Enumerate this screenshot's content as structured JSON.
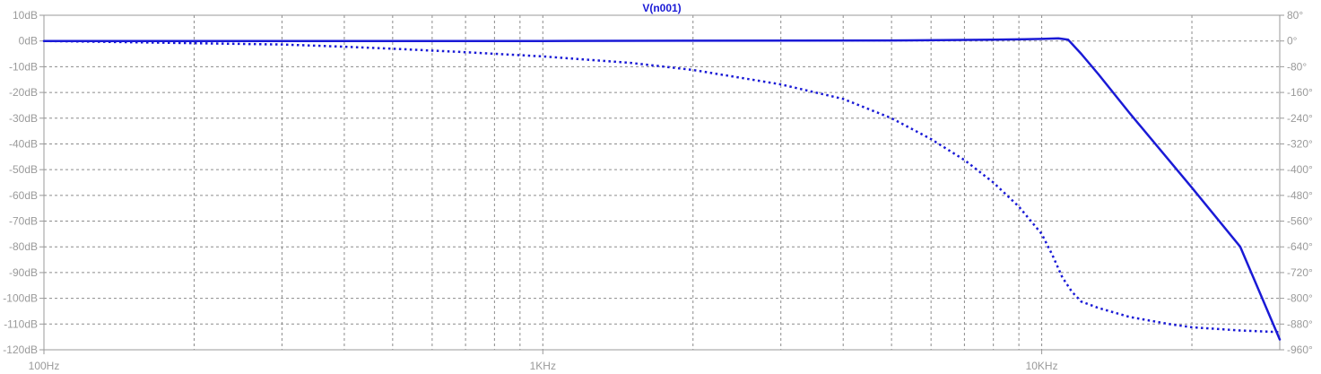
{
  "chart_data": {
    "type": "line",
    "title": "V(n001)",
    "xscale": "log",
    "xlim": [
      100,
      30000
    ],
    "x_ticks": [
      {
        "value": 100,
        "label": "100Hz"
      },
      {
        "value": 1000,
        "label": "1KHz"
      },
      {
        "value": 10000,
        "label": "10KHz"
      }
    ],
    "y_left": {
      "lim": [
        -120,
        10
      ],
      "ticks": [
        {
          "value": 10,
          "label": "10dB"
        },
        {
          "value": 0,
          "label": "0dB"
        },
        {
          "value": -10,
          "label": "-10dB"
        },
        {
          "value": -20,
          "label": "-20dB"
        },
        {
          "value": -30,
          "label": "-30dB"
        },
        {
          "value": -40,
          "label": "-40dB"
        },
        {
          "value": -50,
          "label": "-50dB"
        },
        {
          "value": -60,
          "label": "-60dB"
        },
        {
          "value": -70,
          "label": "-70dB"
        },
        {
          "value": -80,
          "label": "-80dB"
        },
        {
          "value": -90,
          "label": "-90dB"
        },
        {
          "value": -100,
          "label": "-100dB"
        },
        {
          "value": -110,
          "label": "-110dB"
        },
        {
          "value": -120,
          "label": "-120dB"
        }
      ]
    },
    "y_right": {
      "lim": [
        -960,
        80
      ],
      "ticks": [
        {
          "value": 80,
          "label": "80°"
        },
        {
          "value": 0,
          "label": "0°"
        },
        {
          "value": -80,
          "label": "-80°"
        },
        {
          "value": -160,
          "label": "-160°"
        },
        {
          "value": -240,
          "label": "-240°"
        },
        {
          "value": -320,
          "label": "-320°"
        },
        {
          "value": -400,
          "label": "-400°"
        },
        {
          "value": -480,
          "label": "-480°"
        },
        {
          "value": -560,
          "label": "-560°"
        },
        {
          "value": -640,
          "label": "-640°"
        },
        {
          "value": -720,
          "label": "-720°"
        },
        {
          "value": -800,
          "label": "-800°"
        },
        {
          "value": -880,
          "label": "-880°"
        },
        {
          "value": -960,
          "label": "-960°"
        }
      ]
    },
    "grid": true,
    "series": [
      {
        "role": "magnitude",
        "axis": "left",
        "style": "solid",
        "color": "#1a1ad6",
        "x": [
          100,
          200,
          500,
          1000,
          2000,
          5000,
          8000,
          10000,
          10800,
          11300,
          12000,
          13000,
          15000,
          20000,
          25000,
          30000
        ],
        "y": [
          0,
          0,
          0,
          0,
          0.1,
          0.2,
          0.5,
          0.8,
          1.0,
          0.5,
          -5,
          -13,
          -28,
          -57,
          -80,
          -116
        ]
      },
      {
        "role": "phase",
        "axis": "right",
        "style": "dotted",
        "color": "#1a1ad6",
        "x": [
          100,
          150,
          200,
          300,
          400,
          500,
          700,
          1000,
          1500,
          2000,
          3000,
          4000,
          5000,
          6000,
          7000,
          8000,
          9000,
          10000,
          10500,
          11000,
          11500,
          12000,
          13000,
          15000,
          18000,
          20000,
          25000,
          30000
        ],
        "y": [
          0,
          -4,
          -7,
          -11,
          -18,
          -24,
          -35,
          -48,
          -68,
          -90,
          -135,
          -180,
          -240,
          -305,
          -370,
          -440,
          -515,
          -600,
          -665,
          -735,
          -780,
          -810,
          -830,
          -858,
          -880,
          -890,
          -900,
          -905
        ]
      }
    ]
  }
}
